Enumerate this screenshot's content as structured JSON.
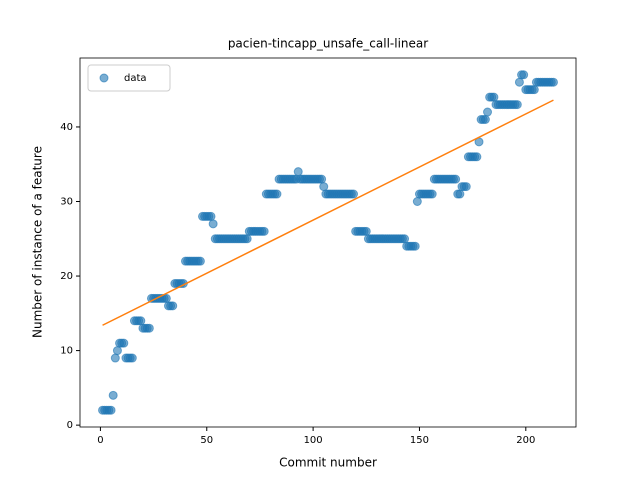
{
  "chart_data": {
    "type": "scatter",
    "title": "pacien-tincapp_unsafe_call-linear",
    "xlabel": "Commit number",
    "ylabel": "Number of instance of a feature",
    "xlim": [
      -9.6,
      223.6
    ],
    "ylim": [
      -0.25,
      49.25
    ],
    "xticks": [
      0,
      50,
      100,
      150,
      200
    ],
    "yticks": [
      0,
      10,
      20,
      30,
      40
    ],
    "legend": "upper left",
    "series": [
      {
        "name": "data",
        "color": "#1f77b4",
        "kind": "scatter",
        "x": [
          1,
          2,
          3,
          4,
          5,
          6,
          7,
          8,
          9,
          10,
          11,
          12,
          13,
          14,
          15,
          16,
          17,
          18,
          19,
          20,
          21,
          22,
          23,
          24,
          25,
          26,
          27,
          28,
          29,
          30,
          31,
          32,
          33,
          34,
          35,
          36,
          37,
          38,
          39,
          40,
          41,
          42,
          43,
          44,
          45,
          46,
          47,
          48,
          49,
          50,
          51,
          52,
          53,
          54,
          55,
          56,
          57,
          58,
          59,
          60,
          61,
          62,
          63,
          64,
          65,
          66,
          67,
          68,
          69,
          70,
          71,
          72,
          73,
          74,
          75,
          76,
          77,
          78,
          79,
          80,
          81,
          82,
          83,
          84,
          85,
          86,
          87,
          88,
          89,
          90,
          91,
          92,
          93,
          94,
          95,
          96,
          97,
          98,
          99,
          100,
          101,
          102,
          103,
          104,
          105,
          106,
          107,
          108,
          109,
          110,
          111,
          112,
          113,
          114,
          115,
          116,
          117,
          118,
          119,
          120,
          121,
          122,
          123,
          124,
          125,
          126,
          127,
          128,
          129,
          130,
          131,
          132,
          133,
          134,
          135,
          136,
          137,
          138,
          139,
          140,
          141,
          142,
          143,
          144,
          145,
          146,
          147,
          148,
          149,
          150,
          151,
          152,
          153,
          154,
          155,
          156,
          157,
          158,
          159,
          160,
          161,
          162,
          163,
          164,
          165,
          166,
          167,
          168,
          169,
          170,
          171,
          172,
          173,
          174,
          175,
          176,
          177,
          178,
          179,
          180,
          181,
          182,
          183,
          184,
          185,
          186,
          187,
          188,
          189,
          190,
          191,
          192,
          193,
          194,
          195,
          196,
          197,
          198,
          199,
          200,
          201,
          202,
          203,
          204,
          205,
          206,
          207,
          208,
          209,
          210,
          211,
          212,
          213
        ],
        "values": [
          2,
          2,
          2,
          2,
          2,
          4,
          9,
          10,
          11,
          11,
          11,
          9,
          9,
          9,
          9,
          14,
          14,
          14,
          14,
          13,
          13,
          13,
          13,
          17,
          17,
          17,
          17,
          17,
          17,
          17,
          17,
          16,
          16,
          16,
          19,
          19,
          19,
          19,
          19,
          22,
          22,
          22,
          22,
          22,
          22,
          22,
          22,
          28,
          28,
          28,
          28,
          28,
          27,
          25,
          25,
          25,
          25,
          25,
          25,
          25,
          25,
          25,
          25,
          25,
          25,
          25,
          25,
          25,
          25,
          26,
          26,
          26,
          26,
          26,
          26,
          26,
          26,
          31,
          31,
          31,
          31,
          31,
          31,
          33,
          33,
          33,
          33,
          33,
          33,
          33,
          33,
          33,
          34,
          33,
          33,
          33,
          33,
          33,
          33,
          33,
          33,
          33,
          33,
          33,
          32,
          31,
          31,
          31,
          31,
          31,
          31,
          31,
          31,
          31,
          31,
          31,
          31,
          31,
          31,
          26,
          26,
          26,
          26,
          26,
          26,
          25,
          25,
          25,
          25,
          25,
          25,
          25,
          25,
          25,
          25,
          25,
          25,
          25,
          25,
          25,
          25,
          25,
          25,
          24,
          24,
          24,
          24,
          24,
          30,
          31,
          31,
          31,
          31,
          31,
          31,
          31,
          33,
          33,
          33,
          33,
          33,
          33,
          33,
          33,
          33,
          33,
          33,
          31,
          31,
          32,
          32,
          32,
          36,
          36,
          36,
          36,
          36,
          38,
          41,
          41,
          41,
          42,
          44,
          44,
          44,
          43,
          43,
          43,
          43,
          43,
          43,
          43,
          43,
          43,
          43,
          43,
          46,
          47,
          47,
          45,
          45,
          45,
          45,
          45,
          46,
          46,
          46,
          46,
          46,
          46,
          46,
          46,
          46
        ]
      },
      {
        "color": "#ff7f0e",
        "kind": "line",
        "x": [
          1,
          213
        ],
        "values": [
          13.4,
          43.6
        ]
      }
    ]
  }
}
